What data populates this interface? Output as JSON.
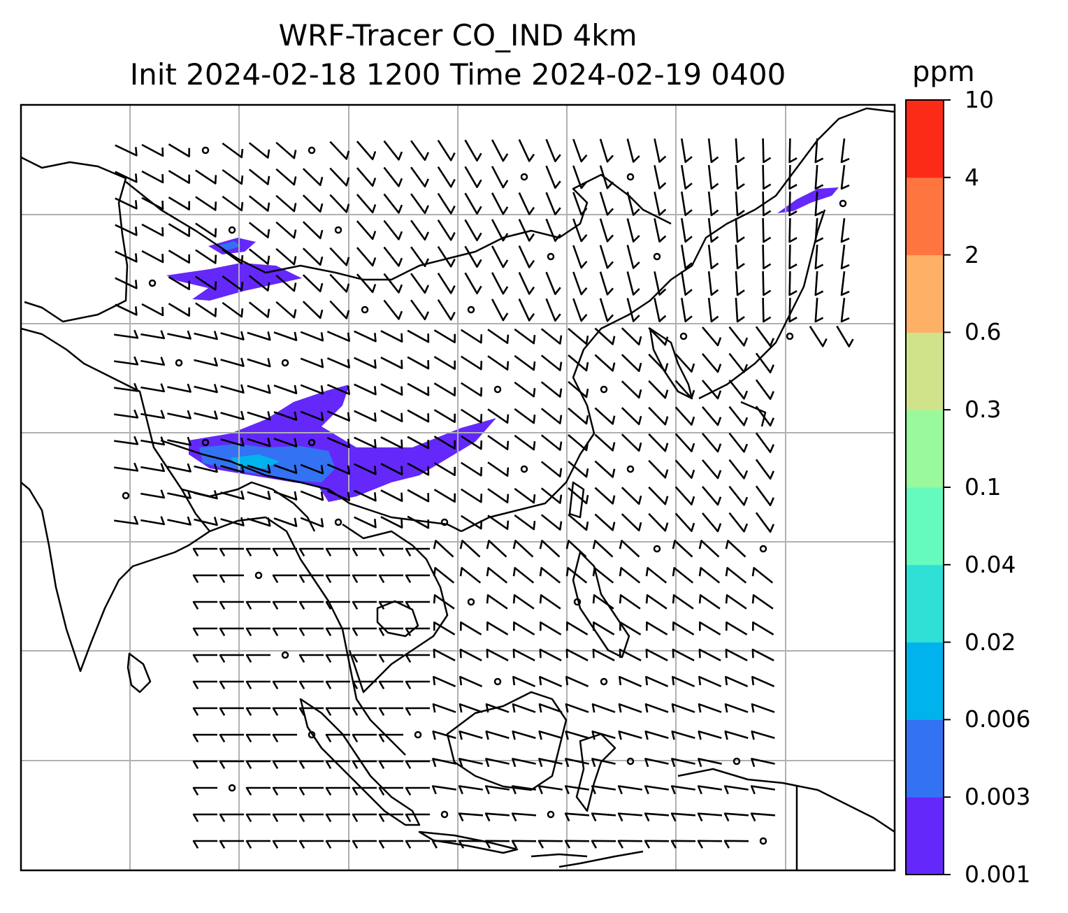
{
  "title": {
    "line1": "WRF-Tracer CO_IND 4km",
    "line2": "Init 2024-02-18 1200 Time 2024-02-19 0400"
  },
  "colorbar": {
    "unit": "ppm",
    "levels": [
      "0.001",
      "0.003",
      "0.006",
      "0.02",
      "0.04",
      "0.1",
      "0.3",
      "0.6",
      "2",
      "4",
      "10"
    ],
    "colors": [
      "#6428fa",
      "#3372f2",
      "#00b3ec",
      "#30dfd6",
      "#66fbbe",
      "#99f99c",
      "#d1e38a",
      "#feb066",
      "#fe7540",
      "#fb2b18"
    ]
  },
  "map": {
    "projection": "lat-lon",
    "gridlines": true,
    "overlays": [
      "coastlines",
      "country-borders",
      "wind-barbs"
    ],
    "plume_colors": {
      "low": "#6428fa",
      "mid": "#3372f2",
      "core": "#00b3ec"
    }
  }
}
